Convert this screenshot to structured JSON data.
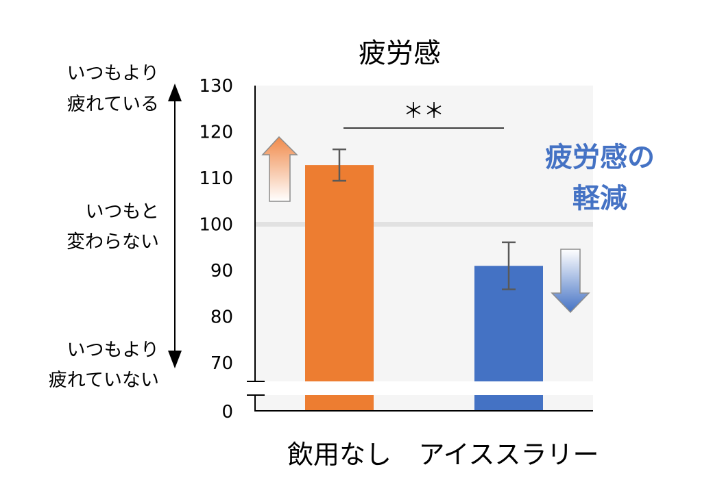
{
  "chart_data": {
    "type": "bar",
    "title": "疲労感",
    "categories": [
      "飲用なし",
      "アイススラリー"
    ],
    "values": [
      112.8,
      91.0
    ],
    "error": [
      3.4,
      5.1
    ],
    "colors": [
      "#ED7D31",
      "#4472C4"
    ],
    "yticks": [
      70,
      80,
      90,
      100,
      110,
      120,
      130
    ],
    "baseline_tick": 0,
    "ylim": [
      70,
      130
    ],
    "axis_break": true,
    "reference_line": 100,
    "grid": false,
    "significance": "＊＊",
    "scale_labels": {
      "top": [
        "いつもより",
        "疲れている"
      ],
      "middle": [
        "いつもと",
        "変わらない"
      ],
      "bottom": [
        "いつもより",
        "疲れていない"
      ]
    },
    "annotation": [
      "疲労感の",
      "軽減"
    ],
    "annotation_color": "#4472C4"
  }
}
